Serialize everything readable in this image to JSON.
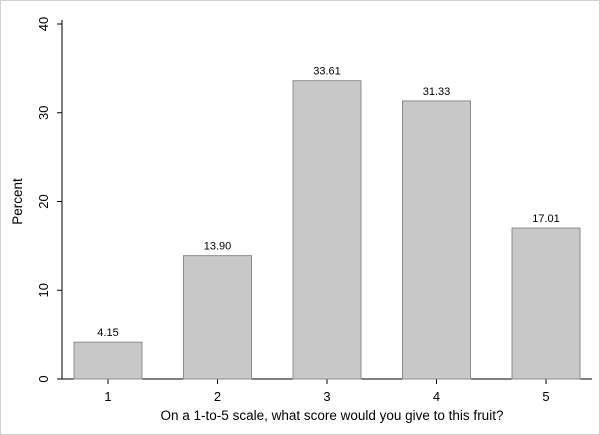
{
  "chart_data": {
    "type": "bar",
    "categories": [
      "1",
      "2",
      "3",
      "4",
      "5"
    ],
    "values": [
      4.15,
      13.9,
      33.61,
      31.33,
      17.01
    ],
    "data_labels": [
      "4.15",
      "13.90",
      "33.61",
      "31.33",
      "17.01"
    ],
    "xlabel": "On a 1-to-5 scale, what score would you give to this fruit?",
    "ylabel": "Percent",
    "ylim": [
      0,
      40
    ],
    "yticks": [
      "0",
      "10",
      "20",
      "30",
      "40"
    ],
    "grid": false,
    "legend": "none",
    "colors": {
      "bar_fill": "#c8c8c8",
      "bar_stroke": "#8c8c8c",
      "axis": "#000000"
    }
  }
}
